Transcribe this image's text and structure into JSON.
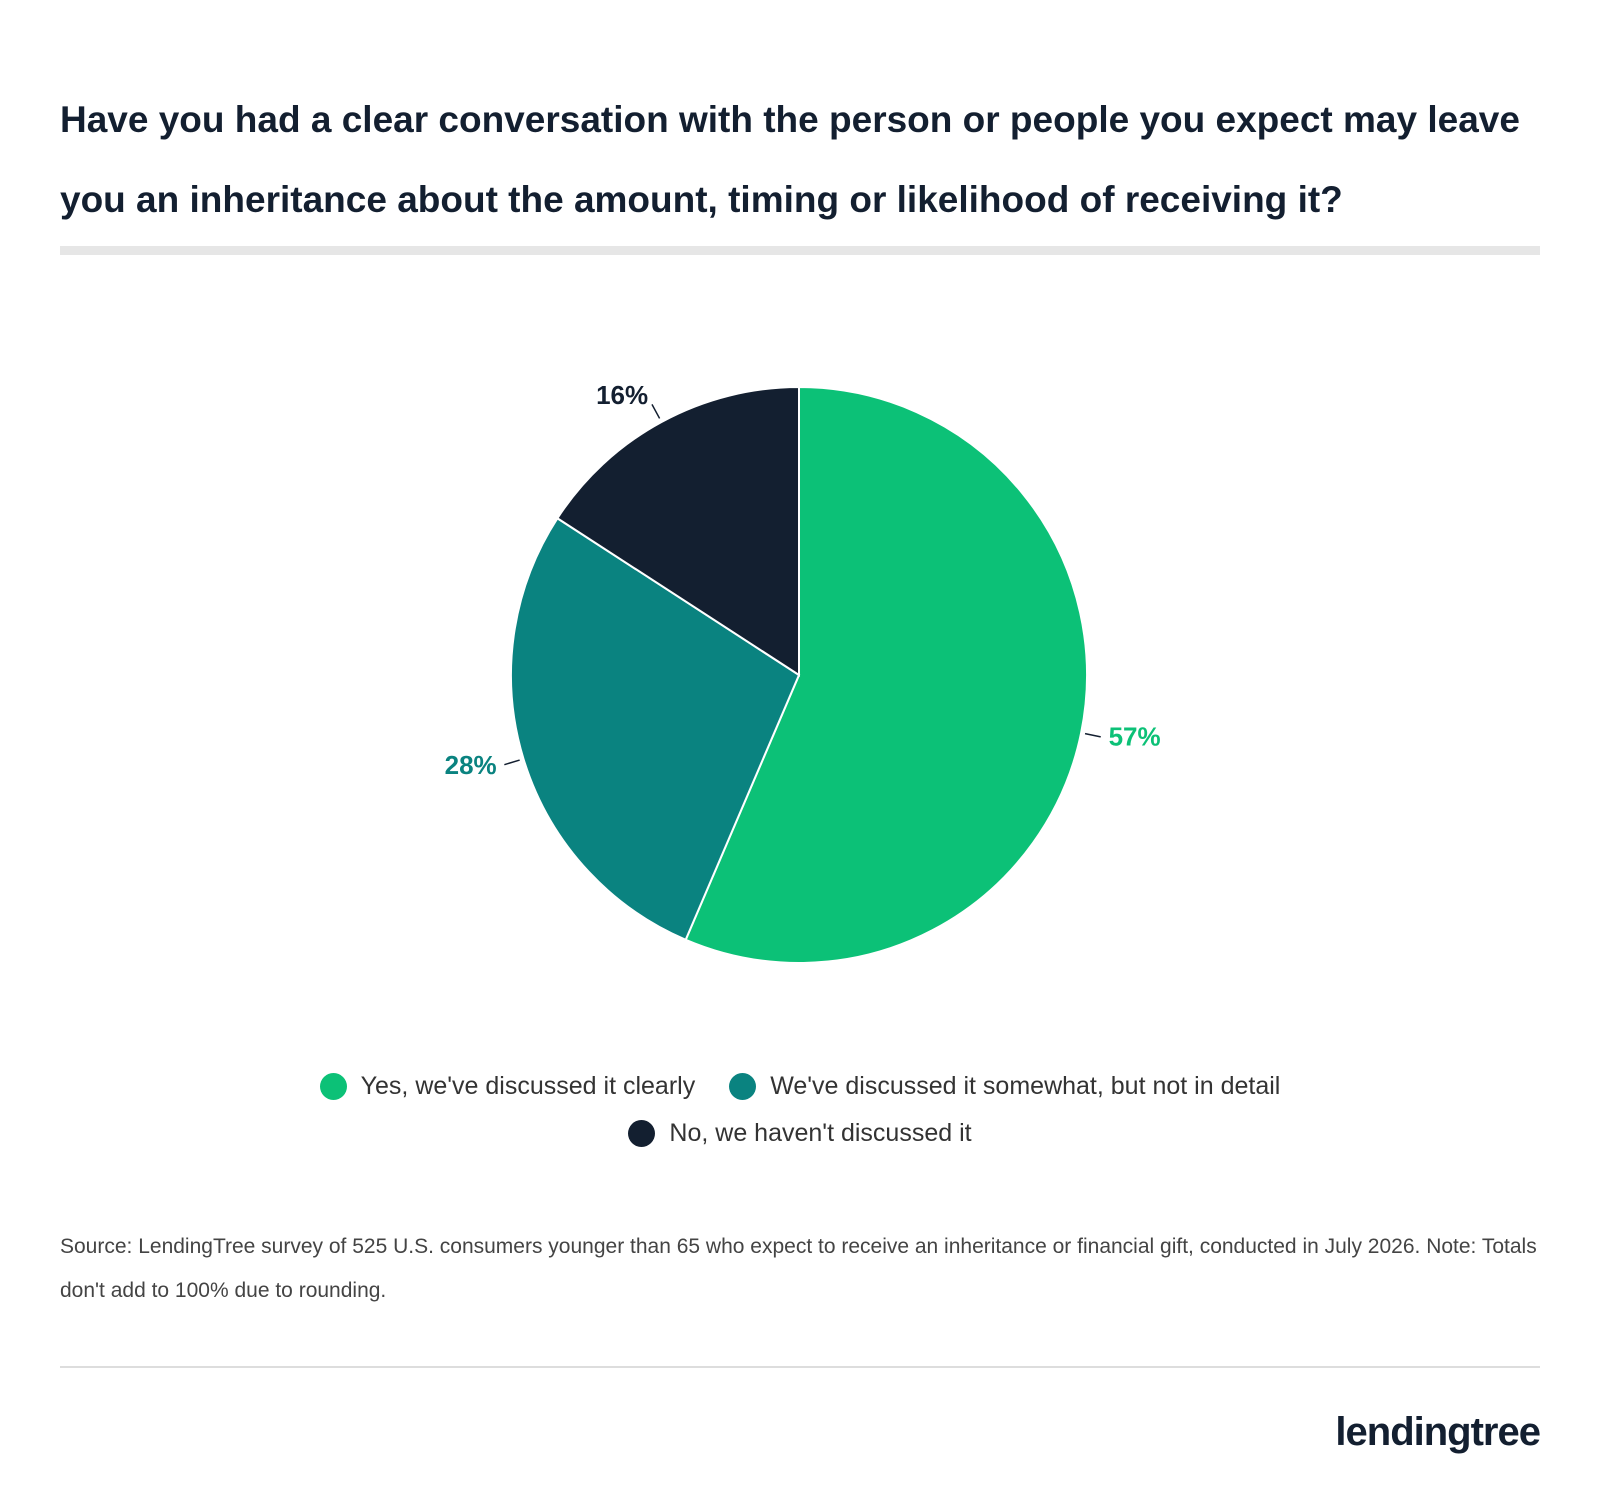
{
  "chart_data": {
    "type": "pie",
    "title": "Have you had a clear conversation with the person or people you expect may leave you an inheritance about the amount, timing or likelihood of receiving it?",
    "categories": [
      "Yes, we've discussed it clearly",
      "We've discussed it somewhat, but not in detail",
      "No, we haven't discussed it"
    ],
    "values": [
      57,
      28,
      16
    ],
    "value_labels": [
      "57%",
      "28%",
      "16%"
    ],
    "colors": [
      "#0cc177",
      "#0a8380",
      "#131f30"
    ],
    "source": "Source: LendingTree survey of 525 U.S. consumers younger than 65 who expect to receive an inheritance or financial gift, conducted in July 2026. Note: Totals don't add to 100% due to rounding.",
    "logo": "lendingtree"
  }
}
